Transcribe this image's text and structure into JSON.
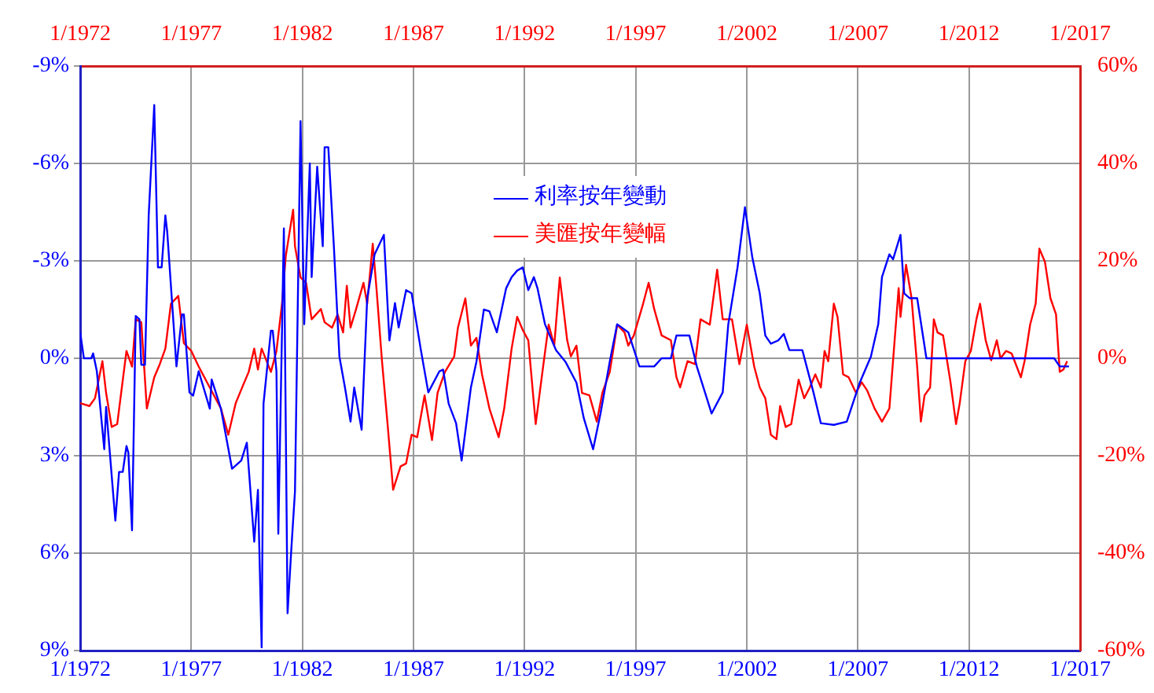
{
  "chart_data": {
    "type": "line",
    "xlim": [
      "1972-01",
      "2017-01"
    ],
    "x2lim": [
      "1972-01",
      "2017-01"
    ],
    "xticks": [
      {
        "value": "1972-01",
        "label": "1/1972"
      },
      {
        "value": "1977-01",
        "label": "1/1977"
      },
      {
        "value": "1982-01",
        "label": "1/1982"
      },
      {
        "value": "1987-01",
        "label": "1/1987"
      },
      {
        "value": "1992-01",
        "label": "1/1992"
      },
      {
        "value": "1997-01",
        "label": "1/1997"
      },
      {
        "value": "2002-01",
        "label": "1/2002"
      },
      {
        "value": "2007-01",
        "label": "1/2007"
      },
      {
        "value": "2012-01",
        "label": "1/2012"
      },
      {
        "value": "2017-01",
        "label": "1/2017"
      }
    ],
    "x2ticks": [
      {
        "value": "1972-01",
        "label": "1/1972"
      },
      {
        "value": "1977-01",
        "label": "1/1977"
      },
      {
        "value": "1982-01",
        "label": "1/1982"
      },
      {
        "value": "1987-01",
        "label": "1/1987"
      },
      {
        "value": "1992-01",
        "label": "1/1992"
      },
      {
        "value": "1997-01",
        "label": "1/1997"
      },
      {
        "value": "2002-01",
        "label": "1/2002"
      },
      {
        "value": "2007-01",
        "label": "1/2007"
      },
      {
        "value": "2012-01",
        "label": "1/2012"
      },
      {
        "value": "2017-01",
        "label": "1/2017"
      }
    ],
    "ylim": [
      9,
      -9
    ],
    "yticks": [
      {
        "value": -9,
        "label": "-9%"
      },
      {
        "value": -6,
        "label": "-6%"
      },
      {
        "value": -3,
        "label": "-3%"
      },
      {
        "value": 0,
        "label": "0%"
      },
      {
        "value": 3,
        "label": "3%"
      },
      {
        "value": 6,
        "label": "6%"
      },
      {
        "value": 9,
        "label": "9%"
      }
    ],
    "y2lim": [
      -60,
      60
    ],
    "y2ticks": [
      {
        "value": -60,
        "label": "-60%"
      },
      {
        "value": -40,
        "label": "-40%"
      },
      {
        "value": -20,
        "label": "-20%"
      },
      {
        "value": 0,
        "label": "0%"
      },
      {
        "value": 20,
        "label": "20%"
      },
      {
        "value": 40,
        "label": "40%"
      },
      {
        "value": 60,
        "label": "60%"
      }
    ],
    "grid": true,
    "legend": "top",
    "marker": "none",
    "line_style": "solid",
    "series": [
      {
        "name": "利率按年變動",
        "color": "#0000ff",
        "x": [
          "1972-01",
          "1972-03",
          "1972-07",
          "1972-08",
          "1972-10",
          "1973-02",
          "1973-03",
          "1973-08",
          "1973-10",
          "1973-12",
          "1974-02",
          "1974-03",
          "1974-05",
          "1974-07",
          "1974-09",
          "1974-10",
          "1974-12",
          "1975-02",
          "1975-05",
          "1975-07",
          "1975-09",
          "1975-11",
          "1975-12",
          "1976-05",
          "1976-08",
          "1976-09",
          "1976-12",
          "1977-02",
          "1977-05",
          "1977-11",
          "1977-12",
          "1978-05",
          "1978-11",
          "1979-04",
          "1979-07",
          "1979-11",
          "1980-01",
          "1980-03",
          "1980-04",
          "1980-08",
          "1980-09",
          "1980-11",
          "1980-12",
          "1981-03",
          "1981-05",
          "1981-07",
          "1981-09",
          "1981-12",
          "1982-02",
          "1982-05",
          "1982-06",
          "1982-09",
          "1982-12",
          "1983-01",
          "1983-03",
          "1983-06",
          "1983-09",
          "1983-12",
          "1984-03",
          "1984-05",
          "1984-09",
          "1984-12",
          "1985-04",
          "1985-09",
          "1985-12",
          "1986-03",
          "1986-05",
          "1986-09",
          "1986-12",
          "1987-05",
          "1987-09",
          "1988-03",
          "1988-05",
          "1988-08",
          "1988-12",
          "1989-03",
          "1989-08",
          "1989-11",
          "1990-03",
          "1990-06",
          "1990-10",
          "1991-03",
          "1991-06",
          "1991-09",
          "1991-12",
          "1992-03",
          "1992-06",
          "1992-08",
          "1992-12",
          "1993-06",
          "1993-11",
          "1994-05",
          "1994-09",
          "1995-02",
          "1995-06",
          "1995-11",
          "1996-03",
          "1996-09",
          "1997-03",
          "1997-11",
          "1998-03",
          "1998-08",
          "1998-11",
          "1999-06",
          "1999-10",
          "2000-06",
          "2000-12",
          "2001-03",
          "2001-08",
          "2001-12",
          "2002-04",
          "2002-08",
          "2002-11",
          "2003-02",
          "2003-06",
          "2003-09",
          "2003-12",
          "2004-07",
          "2005-01",
          "2005-05",
          "2005-12",
          "2006-07",
          "2007-02",
          "2007-08",
          "2007-12",
          "2008-02",
          "2008-06",
          "2008-08",
          "2008-12",
          "2009-02",
          "2009-05",
          "2009-09",
          "2010-02",
          "2015-11",
          "2016-02",
          "2016-07"
        ],
        "values": [
          -0.8,
          0,
          0,
          -0.15,
          0.4,
          2.8,
          1.5,
          5.0,
          3.5,
          3.5,
          2.7,
          2.9,
          5.3,
          -1.3,
          -1.2,
          0.2,
          0.2,
          -4.4,
          -7.8,
          -2.8,
          -2.8,
          -4.4,
          -3.9,
          0.25,
          -1.35,
          -1.35,
          1.05,
          1.15,
          0.4,
          1.55,
          0.65,
          1.55,
          3.4,
          3.15,
          2.6,
          5.65,
          4.05,
          8.9,
          1.4,
          -0.85,
          -0.85,
          0.4,
          5.4,
          -4.0,
          7.85,
          5.9,
          4.1,
          -7.3,
          -1.05,
          -6.0,
          -2.5,
          -5.9,
          -3.45,
          -6.5,
          -6.5,
          -3.45,
          -0.05,
          0.9,
          1.95,
          0.9,
          2.2,
          -1.85,
          -3.2,
          -3.8,
          -0.55,
          -1.7,
          -0.95,
          -2.1,
          -2.0,
          -0.25,
          1.05,
          0.4,
          0.35,
          1.4,
          2.0,
          3.15,
          0.9,
          0.1,
          -1.5,
          -1.45,
          -0.8,
          -2.15,
          -2.5,
          -2.7,
          -2.8,
          -2.1,
          -2.5,
          -2.15,
          -1.05,
          -0.25,
          0.1,
          0.75,
          1.85,
          2.8,
          1.7,
          0.1,
          -1.05,
          -0.8,
          0.25,
          0.25,
          0,
          0,
          -0.7,
          -0.7,
          0.25,
          1.7,
          1.05,
          -1.05,
          -2.8,
          -4.65,
          -3.1,
          -2.0,
          -0.7,
          -0.45,
          -0.55,
          -0.75,
          -0.25,
          -0.25,
          1.05,
          2.0,
          2.05,
          1.95,
          0.75,
          -0.05,
          -1.05,
          -2.5,
          -3.2,
          -3.05,
          -3.8,
          -2.0,
          -1.85,
          -1.85,
          0,
          0,
          0.25,
          0.25
        ]
      },
      {
        "name": "美匯按年變幅",
        "color": "#ff0000",
        "axis": "y2",
        "x": [
          "1972-01",
          "1972-06",
          "1972-09",
          "1973-01",
          "1973-03",
          "1973-06",
          "1973-09",
          "1974-02",
          "1974-05",
          "1974-07",
          "1974-10",
          "1975-01",
          "1975-05",
          "1975-08",
          "1975-11",
          "1976-02",
          "1976-06",
          "1976-09",
          "1977-01",
          "1977-05",
          "1977-11",
          "1978-05",
          "1978-09",
          "1979-01",
          "1979-05",
          "1979-08",
          "1979-11",
          "1980-01",
          "1980-03",
          "1980-08",
          "1980-11",
          "1981-02",
          "1981-04",
          "1981-08",
          "1981-09",
          "1981-12",
          "1982-03",
          "1982-06",
          "1982-11",
          "1983-01",
          "1983-05",
          "1983-08",
          "1983-11",
          "1984-01",
          "1984-03",
          "1984-06",
          "1984-10",
          "1984-12",
          "1985-03",
          "1985-05",
          "1985-08",
          "1985-11",
          "1986-02",
          "1986-06",
          "1986-09",
          "1986-12",
          "1987-03",
          "1987-07",
          "1987-11",
          "1988-02",
          "1988-06",
          "1988-11",
          "1989-01",
          "1989-05",
          "1989-08",
          "1989-11",
          "1990-02",
          "1990-06",
          "1990-11",
          "1991-02",
          "1991-06",
          "1991-09",
          "1991-12",
          "1992-03",
          "1992-07",
          "1992-11",
          "1993-02",
          "1993-05",
          "1993-08",
          "1993-12",
          "1994-02",
          "1994-05",
          "1994-08",
          "1994-12",
          "1995-04",
          "1995-07",
          "1995-11",
          "1996-03",
          "1996-07",
          "1996-09",
          "1996-12",
          "1997-05",
          "1997-08",
          "1997-11",
          "1998-03",
          "1998-08",
          "1998-11",
          "1999-01",
          "1999-05",
          "1999-09",
          "1999-12",
          "2000-05",
          "2000-09",
          "2000-12",
          "2001-05",
          "2001-09",
          "2002-01",
          "2002-05",
          "2002-08",
          "2002-11",
          "2003-02",
          "2003-05",
          "2003-07",
          "2003-10",
          "2004-01",
          "2004-05",
          "2004-08",
          "2004-11",
          "2005-02",
          "2005-05",
          "2005-07",
          "2005-09",
          "2005-12",
          "2006-02",
          "2006-05",
          "2006-08",
          "2006-12",
          "2007-03",
          "2007-06",
          "2007-10",
          "2008-02",
          "2008-06",
          "2008-11",
          "2008-12",
          "2009-03",
          "2009-06",
          "2009-09",
          "2009-11",
          "2010-01",
          "2010-04",
          "2010-06",
          "2010-08",
          "2010-11",
          "2011-03",
          "2011-06",
          "2011-08",
          "2011-11",
          "2012-02",
          "2012-05",
          "2012-07",
          "2012-10",
          "2013-01",
          "2013-04",
          "2013-06",
          "2013-09",
          "2013-12",
          "2014-05",
          "2014-07",
          "2014-10",
          "2015-01",
          "2015-03",
          "2015-06",
          "2015-09",
          "2015-12",
          "2016-02",
          "2016-04",
          "2016-06"
        ],
        "values": [
          -9.2,
          -9.8,
          -8.2,
          -0.6,
          -7.1,
          -14.1,
          -13.5,
          1.5,
          -1.7,
          8.0,
          7.4,
          -10.3,
          -3.9,
          -1.2,
          2.0,
          11.2,
          12.8,
          3.1,
          1.5,
          -1.7,
          -6.0,
          -10.3,
          -15.7,
          -9.2,
          -5.5,
          -2.8,
          2.0,
          -2.3,
          2.0,
          -2.8,
          1.5,
          11.2,
          20.9,
          30.5,
          23.0,
          16.6,
          15.5,
          8.0,
          10.1,
          7.4,
          6.3,
          9.0,
          5.3,
          14.9,
          6.3,
          10.1,
          15.5,
          11.2,
          23.5,
          14.4,
          -0.6,
          -13.5,
          -27,
          -22.2,
          -21.6,
          -15.7,
          -16.2,
          -7.6,
          -16.8,
          -7.1,
          -2.8,
          0.4,
          6.3,
          12.3,
          2.6,
          4.2,
          -3.3,
          -10.3,
          -16.2,
          -10.3,
          2.0,
          8.5,
          5.8,
          3.7,
          -13.5,
          -1.7,
          6.9,
          2.6,
          16.6,
          3.7,
          0.4,
          2.6,
          -7.1,
          -7.6,
          -13.0,
          -7.1,
          -2.8,
          6.9,
          5.3,
          2.6,
          4.7,
          11.2,
          15.5,
          10.1,
          4.7,
          3.7,
          -3.9,
          -6.0,
          -0.6,
          -1.2,
          8.0,
          6.9,
          18.2,
          8.0,
          8.0,
          -1.2,
          6.9,
          -1.7,
          -6.0,
          -8.2,
          -15.7,
          -16.6,
          -9.8,
          -14.1,
          -13.5,
          -4.4,
          -8.2,
          -6.0,
          -3.3,
          -6.0,
          1.5,
          -0.6,
          11.2,
          8.5,
          -3.3,
          -3.9,
          -7.1,
          -4.9,
          -6.6,
          -10.3,
          -13.0,
          -10.3,
          14.4,
          8.5,
          19.2,
          12.3,
          -1.7,
          -13.0,
          -7.6,
          -6.0,
          8.0,
          5.3,
          4.7,
          -4.9,
          -13.5,
          -9.2,
          -0.6,
          1.5,
          8.0,
          11.2,
          3.7,
          -0.4,
          3.7,
          0,
          1.5,
          1.0,
          -3.9,
          -0.6,
          6.9,
          11.2,
          22.5,
          19.8,
          12.3,
          9.0,
          -2.8,
          -2.3,
          -0.6
        ]
      }
    ]
  }
}
